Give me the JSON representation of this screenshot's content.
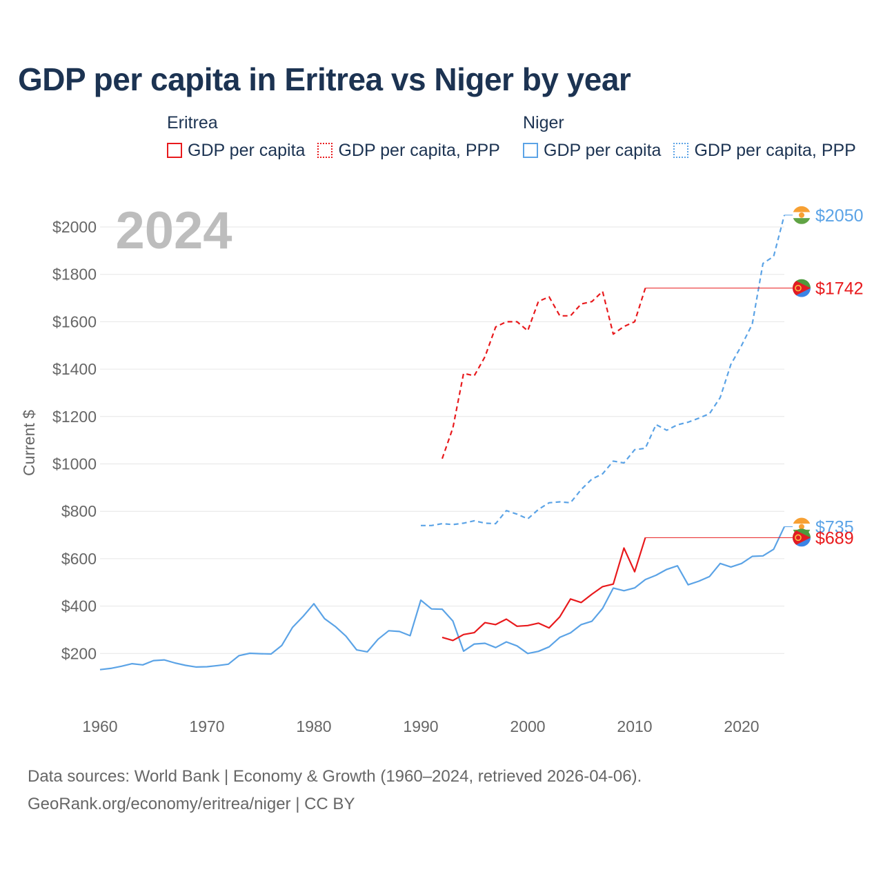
{
  "title": "GDP per capita in Eritrea vs Niger by year",
  "legend": {
    "groups": [
      {
        "country": "Eritrea",
        "color": "#e8191c",
        "items": [
          {
            "label": "GDP per capita",
            "style": "solid"
          },
          {
            "label": "GDP per capita, PPP",
            "style": "dotted"
          }
        ]
      },
      {
        "country": "Niger",
        "color": "#5ba3e6",
        "items": [
          {
            "label": "GDP per capita",
            "style": "solid"
          },
          {
            "label": "GDP per capita, PPP",
            "style": "dotted"
          }
        ]
      }
    ]
  },
  "year_badge": "2024",
  "footer": {
    "line1": "Data sources: World Bank | Economy & Growth (1960–2024, retrieved 2026-04-06).",
    "line2": "GeoRank.org/economy/eritrea/niger | CC BY"
  },
  "chart_data": {
    "type": "line",
    "ylabel": "Current $",
    "xlabel": "",
    "xlim": [
      1960,
      2024
    ],
    "ylim": [
      0,
      2100
    ],
    "x_ticks": [
      1960,
      1970,
      1980,
      1990,
      2000,
      2010,
      2020
    ],
    "y_ticks": [
      200,
      400,
      600,
      800,
      1000,
      1200,
      1400,
      1600,
      1800,
      2000
    ],
    "y_tick_labels": [
      "$200",
      "$400",
      "$600",
      "$800",
      "$1000",
      "$1200",
      "$1400",
      "$1600",
      "$1800",
      "$2000"
    ],
    "grid": true,
    "series": [
      {
        "name": "Niger GDP per capita",
        "country": "Niger",
        "color": "#5ba3e6",
        "dash": "solid",
        "x": [
          1960,
          1961,
          1962,
          1963,
          1964,
          1965,
          1966,
          1967,
          1968,
          1969,
          1970,
          1971,
          1972,
          1973,
          1974,
          1975,
          1976,
          1977,
          1978,
          1979,
          1980,
          1981,
          1982,
          1983,
          1984,
          1985,
          1986,
          1987,
          1988,
          1989,
          1990,
          1991,
          1992,
          1993,
          1994,
          1995,
          1996,
          1997,
          1998,
          1999,
          2000,
          2001,
          2002,
          2003,
          2004,
          2005,
          2006,
          2007,
          2008,
          2009,
          2010,
          2011,
          2012,
          2013,
          2014,
          2015,
          2016,
          2017,
          2018,
          2019,
          2020,
          2021,
          2022,
          2023,
          2024
        ],
        "values": [
          132,
          137,
          146,
          157,
          152,
          170,
          173,
          160,
          150,
          143,
          144,
          149,
          155,
          191,
          201,
          199,
          198,
          234,
          310,
          357,
          410,
          347,
          314,
          273,
          215,
          207,
          260,
          296,
          293,
          275,
          425,
          388,
          387,
          337,
          210,
          240,
          243,
          225,
          249,
          232,
          200,
          209,
          228,
          268,
          287,
          322,
          336,
          390,
          476,
          465,
          477,
          512,
          530,
          555,
          570,
          490,
          505,
          525,
          580,
          565,
          580,
          610,
          612,
          640,
          735
        ],
        "end_label": "$735"
      },
      {
        "name": "Niger GDP per capita, PPP",
        "country": "Niger",
        "color": "#5ba3e6",
        "dash": "dashed",
        "x": [
          1990,
          1991,
          1992,
          1993,
          1994,
          1995,
          1996,
          1997,
          1998,
          1999,
          2000,
          2001,
          2002,
          2003,
          2004,
          2005,
          2006,
          2007,
          2008,
          2009,
          2010,
          2011,
          2012,
          2013,
          2014,
          2015,
          2016,
          2017,
          2018,
          2019,
          2020,
          2021,
          2022,
          2023,
          2024
        ],
        "values": [
          740,
          740,
          748,
          744,
          750,
          760,
          750,
          748,
          803,
          788,
          768,
          808,
          836,
          840,
          836,
          892,
          936,
          958,
          1012,
          1004,
          1060,
          1066,
          1166,
          1142,
          1165,
          1176,
          1193,
          1212,
          1280,
          1420,
          1500,
          1590,
          1846,
          1876,
          2050
        ],
        "end_label": "$2050"
      },
      {
        "name": "Eritrea GDP per capita",
        "country": "Eritrea",
        "color": "#e8191c",
        "dash": "solid",
        "x": [
          1992,
          1993,
          1994,
          1995,
          1996,
          1997,
          1998,
          1999,
          2000,
          2001,
          2002,
          2003,
          2004,
          2005,
          2006,
          2007,
          2008,
          2009,
          2010,
          2011
        ],
        "values": [
          268,
          255,
          280,
          288,
          330,
          322,
          345,
          315,
          318,
          328,
          308,
          355,
          430,
          415,
          450,
          482,
          493,
          645,
          545,
          689
        ],
        "end_label": "$689"
      },
      {
        "name": "Eritrea GDP per capita, PPP",
        "country": "Eritrea",
        "color": "#e8191c",
        "dash": "dashed",
        "x": [
          1992,
          1993,
          1994,
          1995,
          1996,
          1997,
          1998,
          1999,
          2000,
          2001,
          2002,
          2003,
          2004,
          2005,
          2006,
          2007,
          2008,
          2009,
          2010,
          2011
        ],
        "values": [
          1022,
          1152,
          1382,
          1372,
          1452,
          1578,
          1600,
          1600,
          1562,
          1686,
          1705,
          1625,
          1625,
          1675,
          1685,
          1728,
          1548,
          1580,
          1600,
          1742
        ],
        "end_label": "$1742"
      }
    ]
  }
}
